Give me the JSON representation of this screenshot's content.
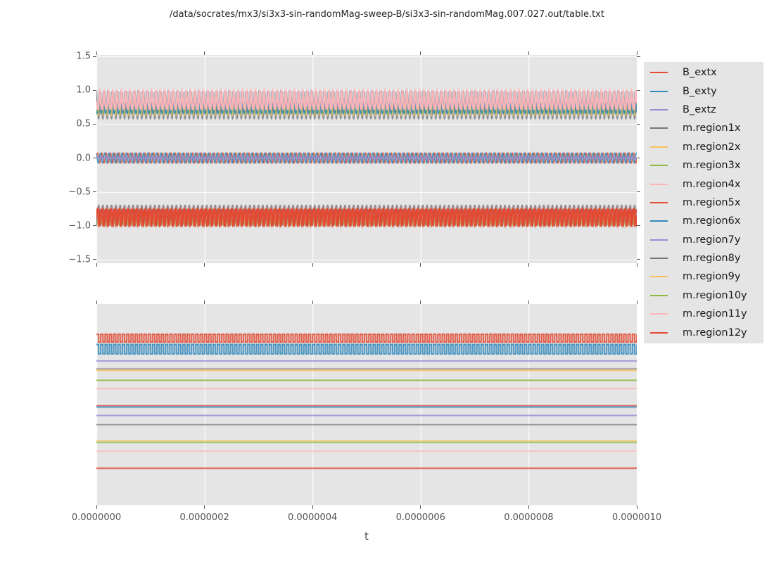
{
  "figure": {
    "title": "/data/socrates/mx3/si3x3-sin-randomMag-sweep-B/si3x3-sin-randomMag.007.027.out/table.txt",
    "background": "#ffffff",
    "axes_background": "#e5e5e5",
    "grid_color": "#ffffff",
    "tick_color": "#555555",
    "text_color": "#555555"
  },
  "palette": {
    "red": "#E24A33",
    "blue": "#348ABD",
    "purple": "#988ED5",
    "gray": "#777777",
    "orange": "#FBC15E",
    "green": "#8EBA42",
    "pink": "#FFB5B8"
  },
  "legend": {
    "items": [
      {
        "label": "B_extx",
        "color": "#E24A33"
      },
      {
        "label": "B_exty",
        "color": "#348ABD"
      },
      {
        "label": "B_extz",
        "color": "#988ED5"
      },
      {
        "label": "m.region1x",
        "color": "#777777"
      },
      {
        "label": "m.region2x",
        "color": "#FBC15E"
      },
      {
        "label": "m.region3x",
        "color": "#8EBA42"
      },
      {
        "label": "m.region4x",
        "color": "#FFB5B8"
      },
      {
        "label": "m.region5x",
        "color": "#E24A33"
      },
      {
        "label": "m.region6x",
        "color": "#348ABD"
      },
      {
        "label": "m.region7y",
        "color": "#988ED5"
      },
      {
        "label": "m.region8y",
        "color": "#777777"
      },
      {
        "label": "m.region9y",
        "color": "#FBC15E"
      },
      {
        "label": "m.region10y",
        "color": "#8EBA42"
      },
      {
        "label": "m.region11y",
        "color": "#FFB5B8"
      },
      {
        "label": "m.region12y",
        "color": "#E24A33"
      }
    ]
  },
  "xaxis": {
    "label": "t",
    "lim": [
      0,
      1e-06
    ],
    "ticks": [
      0,
      2e-07,
      4e-07,
      6e-07,
      8e-07,
      1e-06
    ],
    "tick_labels": [
      "0.0000000",
      "0.0000002",
      "0.0000004",
      "0.0000006",
      "0.0000008",
      "0.0000010"
    ]
  },
  "chart_data": [
    {
      "id": "top-plot",
      "type": "line",
      "xlim": [
        0,
        1e-06
      ],
      "ylim": [
        -1.552,
        1.521
      ],
      "yticks": [
        1.5,
        1.0,
        0.5,
        0.0,
        -0.5,
        -1.0,
        -1.5
      ],
      "ytick_labels": [
        "1.5",
        "1.0",
        "0.5",
        "0.0",
        "−0.5",
        "−1.0",
        "−1.5"
      ],
      "grid": {
        "horizontal": true,
        "vertical": true
      },
      "oscillation_periods": 125,
      "note": "Three oscillation bands: m.region x-components around +0.6..1.0, external field B around 0, region y/x components around -0.7..-1.0",
      "series": [
        {
          "name": "m.region1x",
          "color": "#777777",
          "wave": "cusp-down",
          "min": 0.575,
          "max": 0.99,
          "lw": 1.2,
          "phase": 0.0
        },
        {
          "name": "m.region2x",
          "color": "#FBC15E",
          "wave": "cusp-down",
          "min": 0.63,
          "max": 0.99,
          "lw": 1.2,
          "phase": 0.45
        },
        {
          "name": "m.region3x",
          "color": "#8EBA42",
          "wave": "cusp-down",
          "min": 0.645,
          "max": 1.0,
          "lw": 1.3,
          "phase": 0.8
        },
        {
          "name": "m.region6x",
          "color": "#348ABD",
          "wave": "cusp-down",
          "min": 0.655,
          "max": 1.0,
          "lw": 1.5,
          "phase": 1.25
        },
        {
          "name": "m.region4x",
          "color": "#FFB5B8",
          "wave": "cusp-down",
          "min": 0.72,
          "max": 1.01,
          "lw": 2.6,
          "phase": 0.7
        },
        {
          "name": "B_extx",
          "color": "#E24A33",
          "wave": "sine",
          "center": 0.0,
          "amp": 0.075,
          "lw": 1.4,
          "phase": 0.0
        },
        {
          "name": "B_exty",
          "color": "#348ABD",
          "wave": "sine",
          "center": 0.0,
          "amp": 0.075,
          "lw": 1.4,
          "phase": 2.1
        },
        {
          "name": "B_extz",
          "color": "#988ED5",
          "wave": "sine",
          "center": 0.0,
          "amp": 0.015,
          "lw": 1.5,
          "phase": 0.0
        },
        {
          "name": "m.region7y",
          "color": "#988ED5",
          "wave": "cusp-up",
          "min": -1.02,
          "max": -0.8,
          "lw": 1.2,
          "phase": 0.3
        },
        {
          "name": "m.region11y",
          "color": "#FFB5B8",
          "wave": "cusp-up",
          "min": -1.02,
          "max": -0.82,
          "lw": 1.2,
          "phase": 1.1
        },
        {
          "name": "m.region10y",
          "color": "#8EBA42",
          "wave": "cusp-up",
          "min": -1.01,
          "max": -0.86,
          "lw": 1.2,
          "phase": 1.9
        },
        {
          "name": "m.region9y",
          "color": "#FBC15E",
          "wave": "sine",
          "center": -0.95,
          "amp": 0.055,
          "lw": 1.3,
          "phase": 0.9
        },
        {
          "name": "m.region8y",
          "color": "#777777",
          "wave": "cusp-up",
          "min": -1.0,
          "max": -0.695,
          "lw": 1.3,
          "phase": 0.0
        },
        {
          "name": "m.region5x",
          "color": "#E24A33",
          "wave": "cusp-up",
          "min": -1.005,
          "max": -0.745,
          "lw": 2.4,
          "phase": 0.55
        },
        {
          "name": "m.region12y",
          "color": "#E24A33",
          "wave": "cusp-up",
          "min": -1.02,
          "max": -0.76,
          "lw": 1.5,
          "phase": 1.5
        }
      ]
    },
    {
      "id": "bottom-plot",
      "type": "line",
      "xlim": [
        0,
        1e-06
      ],
      "y_unit": "fraction-of-axes-height-from-top (no y tick labels rendered)",
      "grid": {
        "horizontal": false,
        "vertical": true
      },
      "oscillation_periods": 125,
      "series": [
        {
          "name": "B_extx",
          "color": "#E24A33",
          "wave": "square",
          "high": 0.15,
          "low": 0.189,
          "lw": 1.8,
          "phase": 0.0
        },
        {
          "name": "B_exty",
          "color": "#348ABD",
          "wave": "square",
          "high": 0.201,
          "low": 0.248,
          "lw": 1.8,
          "phase": 0.0
        },
        {
          "name": "B_extz",
          "color": "#988ED5",
          "wave": "flat",
          "level": 0.283,
          "lw": 1.7
        },
        {
          "name": "m.region1x",
          "color": "#777777",
          "wave": "flat",
          "level": 0.322,
          "lw": 1.2
        },
        {
          "name": "m.region2x",
          "color": "#FBC15E",
          "wave": "flat",
          "level": 0.33,
          "lw": 1.7
        },
        {
          "name": "m.region3x",
          "color": "#8EBA42",
          "wave": "flat",
          "level": 0.379,
          "lw": 1.6
        },
        {
          "name": "m.region4x",
          "color": "#FFB5B8",
          "wave": "flat",
          "level": 0.42,
          "lw": 1.6
        },
        {
          "name": "m.region5x",
          "color": "#E24A33",
          "wave": "flat",
          "level": 0.505,
          "lw": 1.6
        },
        {
          "name": "m.region6x",
          "color": "#348ABD",
          "wave": "flat",
          "level": 0.512,
          "lw": 1.8
        },
        {
          "name": "m.region7y",
          "color": "#988ED5",
          "wave": "flat",
          "level": 0.554,
          "lw": 1.7
        },
        {
          "name": "m.region8y",
          "color": "#777777",
          "wave": "flat",
          "level": 0.6,
          "lw": 1.5
        },
        {
          "name": "m.region9y",
          "color": "#FBC15E",
          "wave": "flat",
          "level": 0.68,
          "lw": 1.6
        },
        {
          "name": "m.region10y",
          "color": "#8EBA42",
          "wave": "flat",
          "level": 0.687,
          "lw": 1.6
        },
        {
          "name": "m.region11y",
          "color": "#FFB5B8",
          "wave": "flat",
          "level": 0.731,
          "lw": 1.6
        },
        {
          "name": "m.region12y",
          "color": "#E24A33",
          "wave": "flat",
          "level": 0.816,
          "lw": 1.6
        }
      ]
    }
  ]
}
